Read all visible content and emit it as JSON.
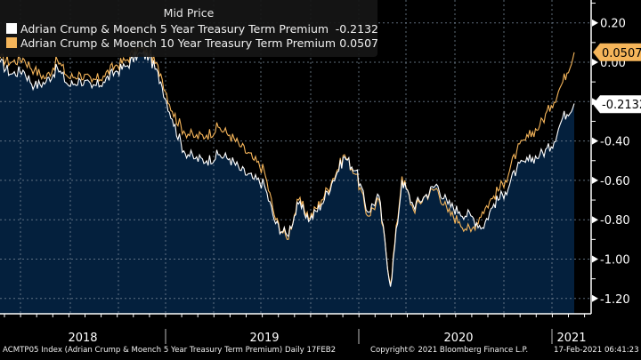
{
  "legend": {
    "title": "Mid Price",
    "items": [
      {
        "name": "Adrian Crump & Moench 5 Year Treasury Term Premium",
        "value": "-0.2132",
        "color": "#ffffff"
      },
      {
        "name": "Adrian Crump & Moench 10 Year Treasury Term Premium",
        "value": "0.0507",
        "color": "#f5b55a"
      }
    ]
  },
  "badges": {
    "ten_year": "0.0507",
    "five_year": "-0.2132"
  },
  "footer": {
    "security": "ACMTP05 Index (Adrian Crump & Moench 5 Year Treasury Term Premium)  Daily 17FEB2",
    "copyright": "Copyright© 2021 Bloomberg Finance L.P.",
    "timestamp": "17-Feb-2021 06:41:23"
  },
  "colors": {
    "background": "#000000",
    "area_fill": "#04203d",
    "five_year": "#ffffff",
    "ten_year": "#f5b55a",
    "grid": "#6f7f8f",
    "axis": "#ffffff"
  },
  "chart_data": {
    "type": "line",
    "title": "Mid Price",
    "xlabel": "",
    "ylabel": "",
    "ylim": [
      -1.25,
      0.3
    ],
    "yticks": [
      0.2,
      0.0,
      -0.2,
      -0.4,
      -0.6,
      -0.8,
      -1.0,
      -1.2
    ],
    "ytick_labels": [
      "0.20",
      "0.00",
      "-0.20",
      "-0.40",
      "-0.60",
      "-0.80",
      "-1.00",
      "-1.20"
    ],
    "x_range": [
      "2017-10",
      "2021-03"
    ],
    "x_year_labels": [
      "2018",
      "2019",
      "2020",
      "2021"
    ],
    "grid": true,
    "legend_position": "top-left",
    "area_series": "Adrian Crump & Moench 5 Year Treasury Term Premium",
    "x": [
      0.0,
      0.02,
      0.04,
      0.06,
      0.08,
      0.1,
      0.12,
      0.14,
      0.16,
      0.18,
      0.2,
      0.22,
      0.24,
      0.26,
      0.28,
      0.3,
      0.32,
      0.34,
      0.36,
      0.38,
      0.4,
      0.42,
      0.44,
      0.46,
      0.48,
      0.5,
      0.52,
      0.54,
      0.56,
      0.58,
      0.6,
      0.62,
      0.64,
      0.66,
      0.68,
      0.7,
      0.72,
      0.74,
      0.76,
      0.78,
      0.8,
      0.82,
      0.84,
      0.86,
      0.88,
      0.9,
      0.92,
      0.94,
      0.96,
      0.98,
      1.0
    ],
    "series": [
      {
        "name": "Adrian Crump & Moench 5 Year Treasury Term Premium",
        "color": "#ffffff",
        "last": -0.2132,
        "values": [
          0.0,
          -0.06,
          -0.04,
          -0.12,
          -0.1,
          -0.03,
          -0.12,
          -0.09,
          -0.13,
          -0.1,
          -0.05,
          -0.02,
          0.04,
          0.03,
          -0.1,
          -0.29,
          -0.45,
          -0.49,
          -0.5,
          -0.47,
          -0.49,
          -0.55,
          -0.59,
          -0.62,
          -0.82,
          -0.88,
          -0.72,
          -0.8,
          -0.72,
          -0.6,
          -0.48,
          -0.55,
          -0.76,
          -0.68,
          -1.14,
          -0.6,
          -0.73,
          -0.68,
          -0.62,
          -0.72,
          -0.76,
          -0.78,
          -0.84,
          -0.72,
          -0.66,
          -0.54,
          -0.5,
          -0.47,
          -0.43,
          -0.28,
          -0.21
        ]
      },
      {
        "name": "Adrian Crump & Moench 10 Year Treasury Term Premium",
        "color": "#f5b55a",
        "last": 0.0507,
        "values": [
          0.02,
          0.0,
          0.02,
          -0.04,
          -0.08,
          0.01,
          -0.08,
          -0.06,
          -0.1,
          -0.07,
          -0.02,
          0.01,
          0.07,
          0.05,
          -0.06,
          -0.25,
          -0.35,
          -0.38,
          -0.37,
          -0.33,
          -0.37,
          -0.43,
          -0.49,
          -0.55,
          -0.8,
          -0.9,
          -0.7,
          -0.79,
          -0.7,
          -0.59,
          -0.47,
          -0.57,
          -0.78,
          -0.7,
          -1.13,
          -0.58,
          -0.75,
          -0.68,
          -0.64,
          -0.76,
          -0.81,
          -0.86,
          -0.76,
          -0.68,
          -0.6,
          -0.45,
          -0.38,
          -0.32,
          -0.22,
          -0.1,
          0.05
        ]
      }
    ]
  }
}
